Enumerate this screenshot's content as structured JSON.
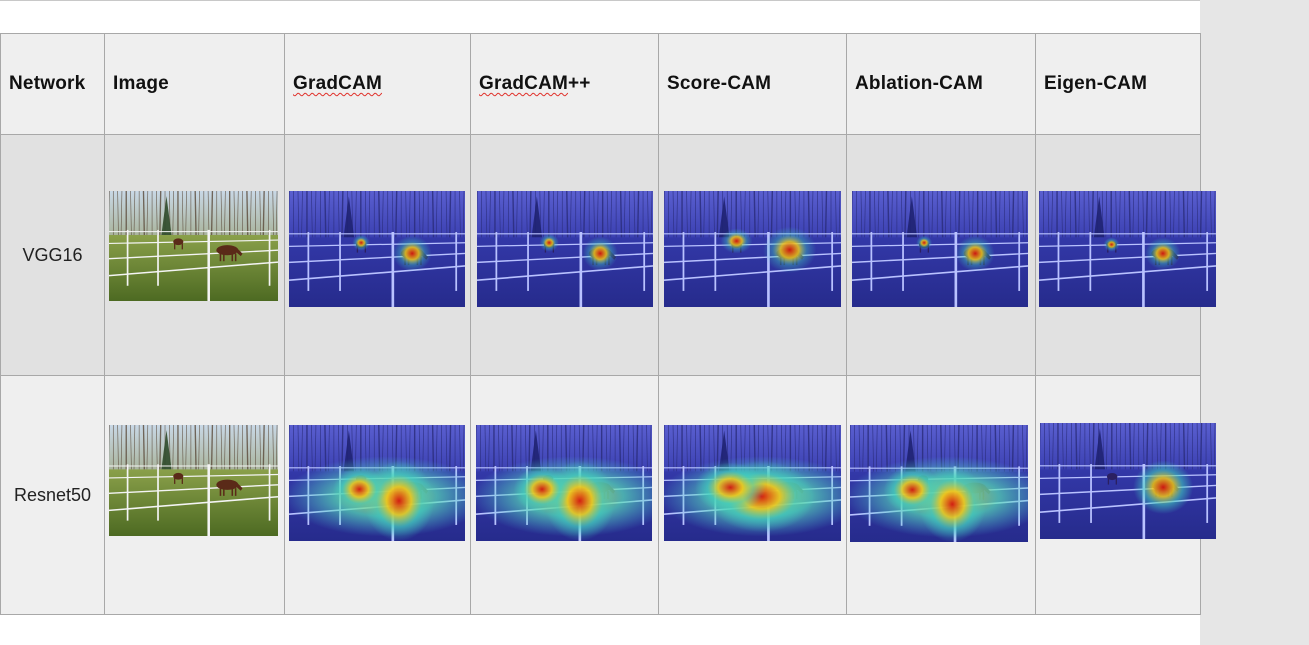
{
  "table": {
    "headers": [
      "Network",
      "Image",
      "GradCAM",
      "GradCAM++",
      "Score-CAM",
      "Ablation-CAM",
      "Eigen-CAM"
    ],
    "spellcheck_flagged": [
      "GradCAM",
      "GradCAM++"
    ],
    "rows": [
      {
        "network": "VGG16",
        "cells": [
          {
            "kind": "photo"
          },
          {
            "kind": "heatmap",
            "method": "GradCAM"
          },
          {
            "kind": "heatmap",
            "method": "GradCAM++"
          },
          {
            "kind": "heatmap",
            "method": "Score-CAM"
          },
          {
            "kind": "heatmap",
            "method": "Ablation-CAM"
          },
          {
            "kind": "heatmap",
            "method": "Eigen-CAM"
          }
        ]
      },
      {
        "network": "Resnet50",
        "cells": [
          {
            "kind": "photo"
          },
          {
            "kind": "heatmap",
            "method": "GradCAM"
          },
          {
            "kind": "heatmap",
            "method": "GradCAM++"
          },
          {
            "kind": "heatmap",
            "method": "Score-CAM"
          },
          {
            "kind": "heatmap",
            "method": "Ablation-CAM"
          },
          {
            "kind": "heatmap",
            "method": "Eigen-CAM"
          }
        ]
      }
    ]
  },
  "colors": {
    "header_bg": "#efefef",
    "row1_bg": "#e1e1e1",
    "row2_bg": "#efefef",
    "grid": "#a8a8a8",
    "heat_low": "#2a2a9e",
    "heat_high": "#e0301a",
    "spellcheck": "#e0302a"
  }
}
